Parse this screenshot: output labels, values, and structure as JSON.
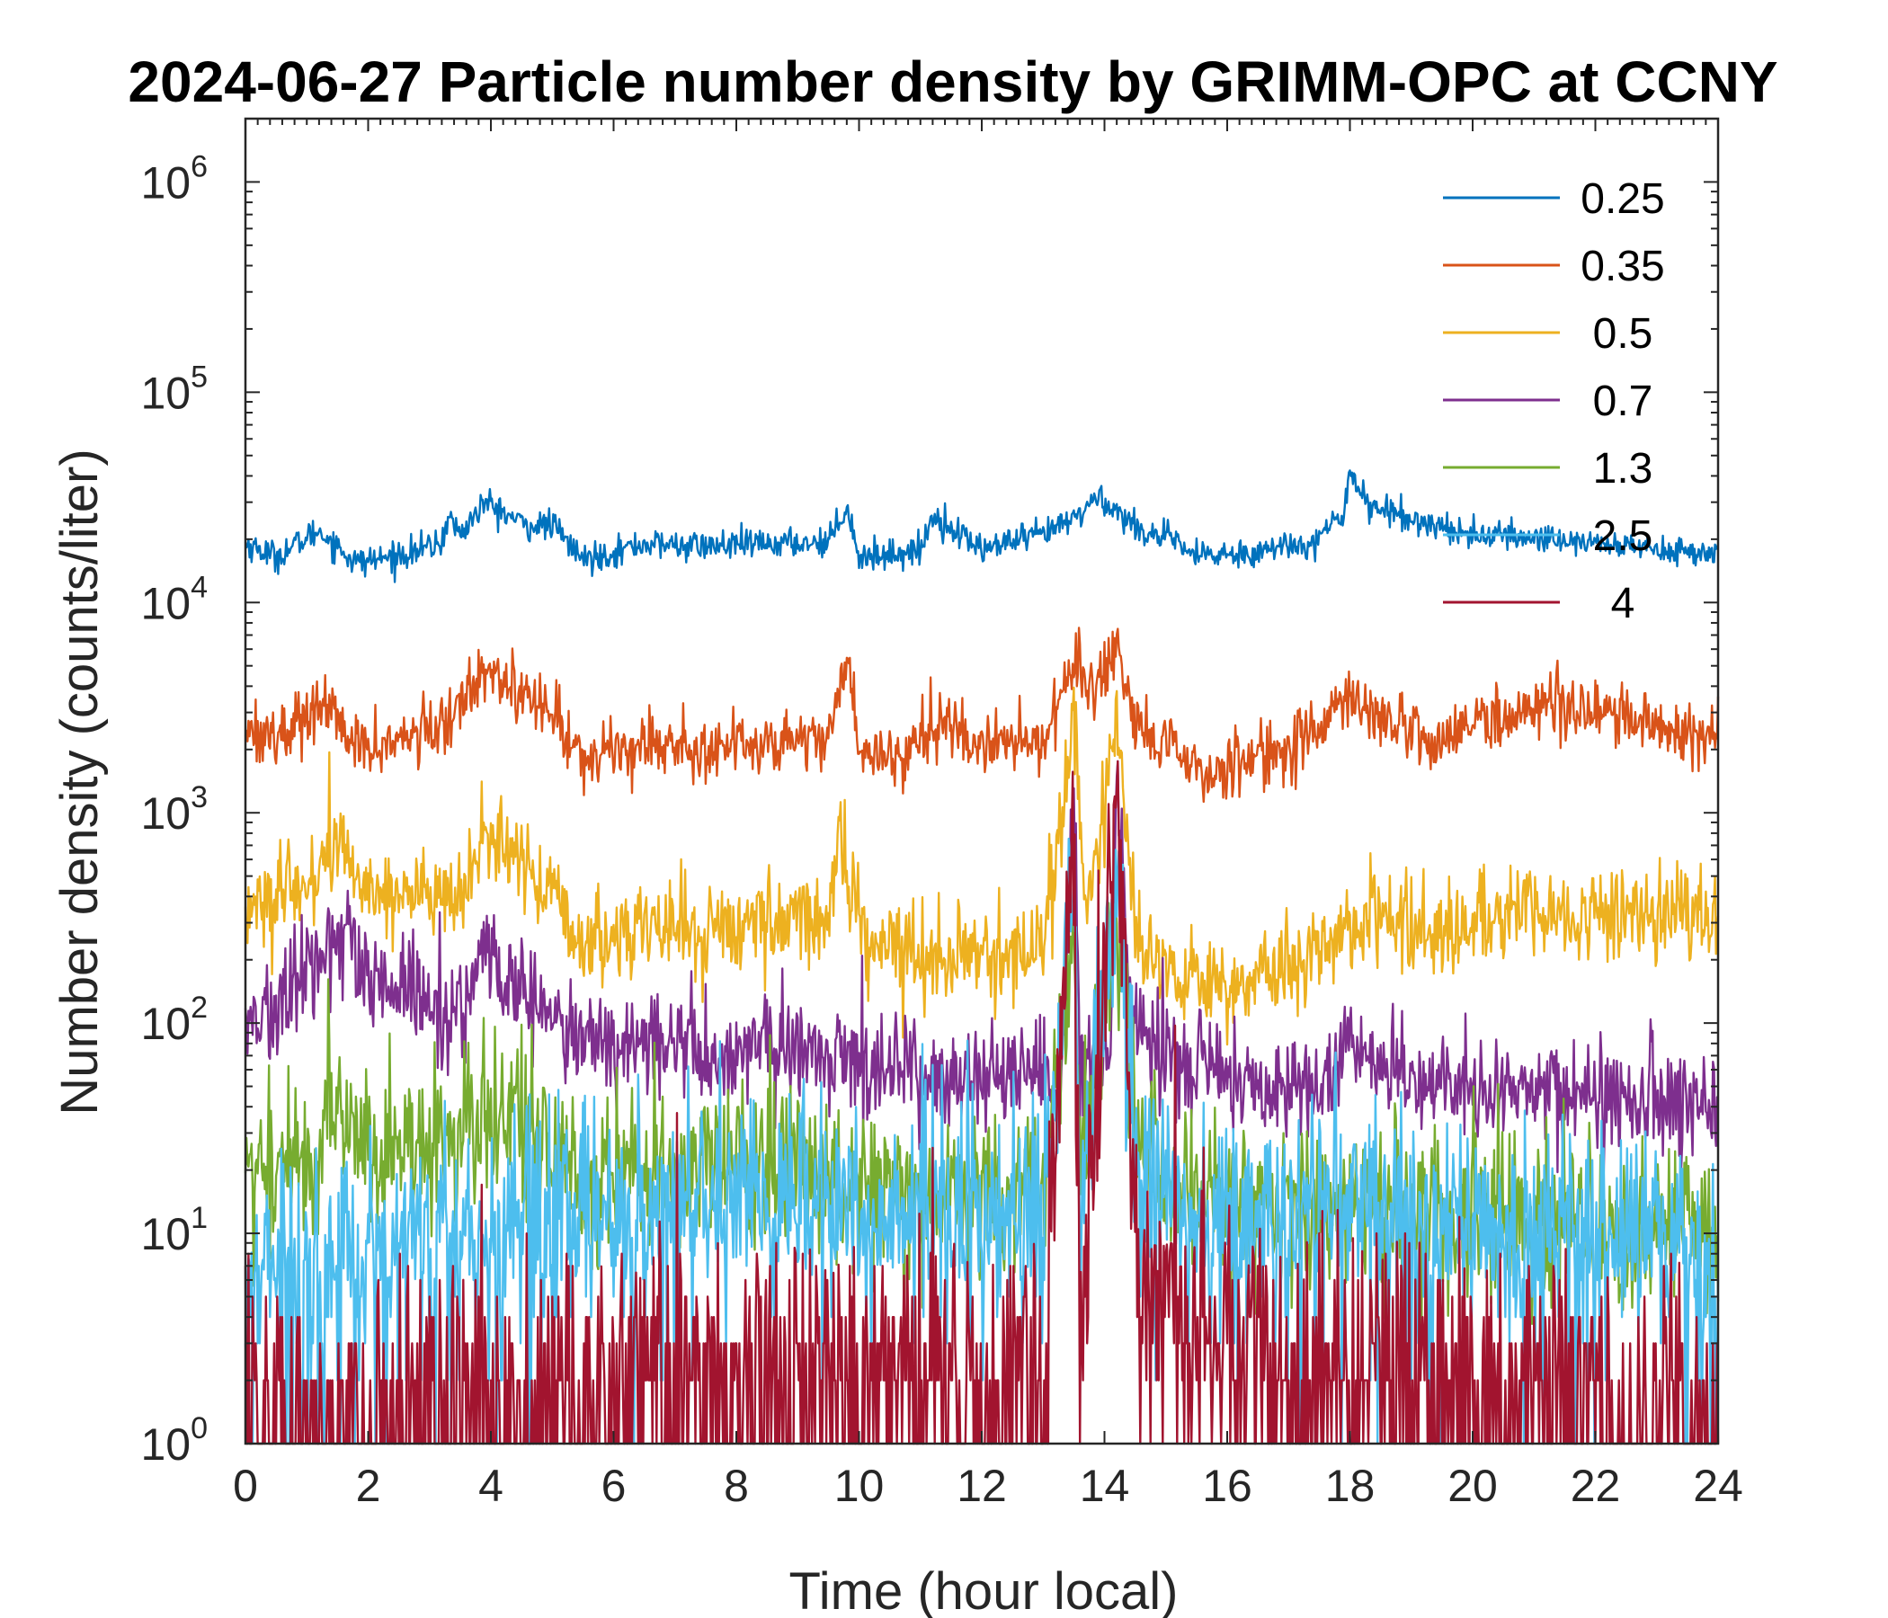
{
  "chart_data": {
    "type": "line",
    "title": "2024-06-27 Particle number density by GRIMM-OPC at CCNY",
    "xlabel": "Time (hour local)",
    "ylabel": "Number density (counts/liter)",
    "xlim": [
      0,
      24
    ],
    "ylim": [
      1,
      2000000
    ],
    "yscale": "log",
    "xticks": [
      0,
      2,
      4,
      6,
      8,
      10,
      12,
      14,
      16,
      18,
      20,
      22,
      24
    ],
    "yticks": [
      {
        "value": 1,
        "base": "10",
        "exp": "0"
      },
      {
        "value": 10,
        "base": "10",
        "exp": "1"
      },
      {
        "value": 100,
        "base": "10",
        "exp": "2"
      },
      {
        "value": 1000,
        "base": "10",
        "exp": "3"
      },
      {
        "value": 10000,
        "base": "10",
        "exp": "4"
      },
      {
        "value": 100000,
        "base": "10",
        "exp": "5"
      },
      {
        "value": 1000000,
        "base": "10",
        "exp": "6"
      }
    ],
    "legend_position": "top-right",
    "series": [
      {
        "name": "0.25",
        "color": "#0072BD",
        "keypoints": [
          [
            0,
            19000
          ],
          [
            0.5,
            16500
          ],
          [
            1.2,
            22000
          ],
          [
            1.8,
            15500
          ],
          [
            2.4,
            16500
          ],
          [
            3.2,
            19000
          ],
          [
            3.3,
            26000
          ],
          [
            3.5,
            21000
          ],
          [
            3.9,
            30000
          ],
          [
            4.6,
            23000
          ],
          [
            5.0,
            23500
          ],
          [
            5.5,
            16000
          ],
          [
            6.5,
            19000
          ],
          [
            7.5,
            18500
          ],
          [
            8.5,
            19000
          ],
          [
            9.5,
            19500
          ],
          [
            9.8,
            29000
          ],
          [
            10.0,
            16500
          ],
          [
            11.0,
            17500
          ],
          [
            11.2,
            26000
          ],
          [
            12.0,
            18000
          ],
          [
            13.0,
            21000
          ],
          [
            13.5,
            25000
          ],
          [
            13.9,
            32000
          ],
          [
            14.5,
            23000
          ],
          [
            15.2,
            19000
          ],
          [
            15.5,
            16500
          ],
          [
            16.5,
            17500
          ],
          [
            17.5,
            20000
          ],
          [
            17.9,
            27000
          ],
          [
            18.0,
            43000
          ],
          [
            18.3,
            29000
          ],
          [
            19.0,
            25000
          ],
          [
            20.0,
            21000
          ],
          [
            21.5,
            20000
          ],
          [
            22.5,
            18500
          ],
          [
            24,
            17000
          ]
        ],
        "amp": 0.035
      },
      {
        "name": "0.35",
        "color": "#D95319",
        "keypoints": [
          [
            0,
            2600
          ],
          [
            0.5,
            2300
          ],
          [
            1.3,
            3300
          ],
          [
            1.8,
            2000
          ],
          [
            2.5,
            2200
          ],
          [
            3.3,
            2600
          ],
          [
            3.9,
            5200
          ],
          [
            4.6,
            3500
          ],
          [
            5.0,
            3000
          ],
          [
            5.5,
            1800
          ],
          [
            6.5,
            2200
          ],
          [
            7.5,
            2000
          ],
          [
            8.5,
            2200
          ],
          [
            9.5,
            2300
          ],
          [
            9.8,
            5500
          ],
          [
            10.0,
            2000
          ],
          [
            10.6,
            1800
          ],
          [
            11.2,
            2800
          ],
          [
            12.0,
            2100
          ],
          [
            13.0,
            2200
          ],
          [
            13.5,
            5600
          ],
          [
            13.8,
            3600
          ],
          [
            14.2,
            5400
          ],
          [
            14.5,
            2500
          ],
          [
            15.2,
            1900
          ],
          [
            15.6,
            1500
          ],
          [
            16.5,
            1900
          ],
          [
            17.5,
            2300
          ],
          [
            17.9,
            3800
          ],
          [
            18.5,
            2800
          ],
          [
            19.5,
            2200
          ],
          [
            20.2,
            2800
          ],
          [
            21.5,
            3400
          ],
          [
            22.5,
            2800
          ],
          [
            24,
            2300
          ]
        ],
        "amp": 0.075
      },
      {
        "name": "0.5",
        "color": "#EDB120",
        "keypoints": [
          [
            0,
            350
          ],
          [
            0.8,
            400
          ],
          [
            1.5,
            700
          ],
          [
            2.0,
            430
          ],
          [
            3.0,
            420
          ],
          [
            3.5,
            350
          ],
          [
            3.9,
            800
          ],
          [
            4.8,
            500
          ],
          [
            5.5,
            220
          ],
          [
            6.5,
            300
          ],
          [
            7.5,
            270
          ],
          [
            8.5,
            310
          ],
          [
            9.5,
            320
          ],
          [
            9.7,
            850
          ],
          [
            10.0,
            270
          ],
          [
            11.0,
            220
          ],
          [
            12.0,
            200
          ],
          [
            13.0,
            240
          ],
          [
            13.5,
            2600
          ],
          [
            13.7,
            330
          ],
          [
            14.2,
            2600
          ],
          [
            14.5,
            250
          ],
          [
            15.2,
            180
          ],
          [
            16.0,
            150
          ],
          [
            17.0,
            180
          ],
          [
            18.0,
            300
          ],
          [
            19.0,
            300
          ],
          [
            20.0,
            280
          ],
          [
            21.0,
            330
          ],
          [
            22.0,
            330
          ],
          [
            23.0,
            330
          ],
          [
            24,
            290
          ]
        ],
        "amp": 0.11
      },
      {
        "name": "0.7",
        "color": "#7E2F8E",
        "keypoints": [
          [
            0,
            105
          ],
          [
            0.5,
            110
          ],
          [
            1.5,
            270
          ],
          [
            2.0,
            150
          ],
          [
            3.0,
            130
          ],
          [
            3.5,
            110
          ],
          [
            3.9,
            200
          ],
          [
            4.8,
            120
          ],
          [
            5.5,
            75
          ],
          [
            6.5,
            85
          ],
          [
            7.5,
            70
          ],
          [
            8.5,
            75
          ],
          [
            9.5,
            70
          ],
          [
            10.5,
            65
          ],
          [
            11.5,
            55
          ],
          [
            12.5,
            50
          ],
          [
            13.3,
            55
          ],
          [
            13.5,
            1400
          ],
          [
            13.6,
            60
          ],
          [
            14.1,
            75
          ],
          [
            14.2,
            1500
          ],
          [
            14.4,
            120
          ],
          [
            14.8,
            80
          ],
          [
            15.5,
            60
          ],
          [
            16.5,
            50
          ],
          [
            17.5,
            50
          ],
          [
            18.0,
            80
          ],
          [
            19.0,
            55
          ],
          [
            20.0,
            48
          ],
          [
            21.0,
            48
          ],
          [
            22.0,
            45
          ],
          [
            23.0,
            45
          ],
          [
            24,
            45
          ]
        ],
        "amp": 0.13
      },
      {
        "name": "1.3",
        "color": "#77AC30",
        "keypoints": [
          [
            0,
            20
          ],
          [
            1.0,
            22
          ],
          [
            1.5,
            40
          ],
          [
            2.0,
            25
          ],
          [
            3.0,
            25
          ],
          [
            3.9,
            38
          ],
          [
            4.8,
            28
          ],
          [
            5.5,
            18
          ],
          [
            7.0,
            20
          ],
          [
            8.5,
            22
          ],
          [
            10.0,
            18
          ],
          [
            12.0,
            15
          ],
          [
            13.0,
            15
          ],
          [
            13.5,
            300
          ],
          [
            13.6,
            20
          ],
          [
            14.2,
            400
          ],
          [
            14.5,
            30
          ],
          [
            15.5,
            15
          ],
          [
            17.0,
            12
          ],
          [
            18.0,
            14
          ],
          [
            20.0,
            12
          ],
          [
            22.0,
            10
          ],
          [
            24,
            10
          ]
        ],
        "amp": 0.2
      },
      {
        "name": "2.5",
        "color": "#4DBEEE",
        "keypoints": [
          [
            0,
            6
          ],
          [
            2.0,
            8
          ],
          [
            4.0,
            10
          ],
          [
            6.0,
            12
          ],
          [
            8.0,
            13
          ],
          [
            10.0,
            13
          ],
          [
            12.0,
            12
          ],
          [
            13.0,
            12
          ],
          [
            13.5,
            600
          ],
          [
            13.6,
            14
          ],
          [
            14.2,
            450
          ],
          [
            14.5,
            20
          ],
          [
            15.5,
            12
          ],
          [
            17.0,
            11
          ],
          [
            18.0,
            10
          ],
          [
            20.0,
            10
          ],
          [
            22.0,
            9
          ],
          [
            24,
            8
          ]
        ],
        "amp": 0.28
      },
      {
        "name": "4",
        "color": "#A2142F",
        "keypoints": [
          [
            0,
            1
          ],
          [
            1.0,
            1.2
          ],
          [
            2.0,
            1.4
          ],
          [
            4.0,
            1.7
          ],
          [
            6.0,
            2.1
          ],
          [
            8.0,
            2.4
          ],
          [
            10.0,
            2.1
          ],
          [
            12.0,
            2.0
          ],
          [
            13.0,
            2.1
          ],
          [
            13.5,
            1300
          ],
          [
            13.6,
            3
          ],
          [
            14.2,
            1200
          ],
          [
            14.5,
            10
          ],
          [
            15.0,
            6
          ],
          [
            16.0,
            3
          ],
          [
            18.0,
            2.1
          ],
          [
            20.0,
            1.7
          ],
          [
            22.0,
            1.4
          ],
          [
            24,
            1.2
          ]
        ],
        "amp": 0.3
      }
    ]
  }
}
